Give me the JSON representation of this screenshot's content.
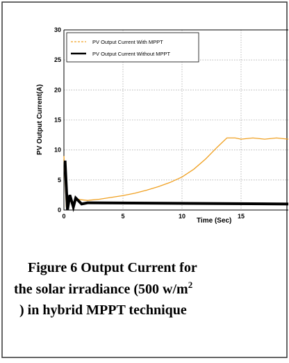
{
  "chart_data": {
    "type": "line",
    "ylabel": "PV Output Current(A)",
    "xlabel": "Time (Sec)",
    "xlim": [
      0,
      19
    ],
    "xticks": [
      0,
      5,
      10,
      15
    ],
    "ylim": [
      0,
      30
    ],
    "yticks": [
      0,
      5,
      10,
      15,
      20,
      25,
      30
    ],
    "grid": true,
    "legend": "upper left",
    "series": [
      {
        "name": "PV Output Current With MPPT",
        "color": "#f0a020",
        "x": [
          0,
          0.2,
          0.4,
          0.7,
          1,
          2,
          3,
          4,
          5,
          6,
          7,
          8,
          9,
          10,
          11,
          12,
          13,
          13.8,
          14.5,
          15,
          16,
          17,
          18,
          19
        ],
        "values": [
          9,
          0.5,
          2,
          1,
          1.8,
          1.6,
          1.8,
          2.1,
          2.4,
          2.8,
          3.3,
          3.9,
          4.6,
          5.5,
          6.8,
          8.5,
          10.5,
          12,
          12,
          11.8,
          12,
          11.8,
          12,
          11.8
        ]
      },
      {
        "name": "PV Output Current Without MPPT",
        "color": "#000000",
        "x": [
          0,
          0.1,
          0.3,
          0.5,
          0.8,
          1,
          1.5,
          2,
          19
        ],
        "values": [
          8,
          8,
          0,
          2.5,
          0.5,
          2,
          1,
          1.2,
          1
        ]
      }
    ]
  },
  "caption": {
    "line1": "Figure 6 Output Current for",
    "line2": "the solar irradiance (500 w/m",
    "superscript": "2",
    "line3": ") in hybrid MPPT technique"
  }
}
